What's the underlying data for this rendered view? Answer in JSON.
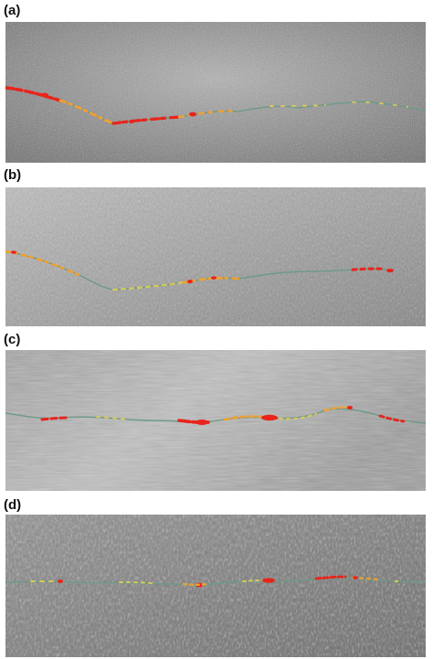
{
  "figure": {
    "panels": [
      {
        "label": "(a)",
        "surface_color": "#9a9a9a",
        "texture": "speckled-light"
      },
      {
        "label": "(b)",
        "surface_color": "#a7a7a7",
        "texture": "speckled-streaked"
      },
      {
        "label": "(c)",
        "surface_color": "#b3b3b3",
        "texture": "smooth-scratched"
      },
      {
        "label": "(d)",
        "surface_color": "#8c8c8c",
        "texture": "rough-dark"
      }
    ],
    "crack_colors": {
      "path": "#6e9a86",
      "low": "#d8c85a",
      "medium": "#f0a030",
      "high": "#e8241c"
    }
  }
}
